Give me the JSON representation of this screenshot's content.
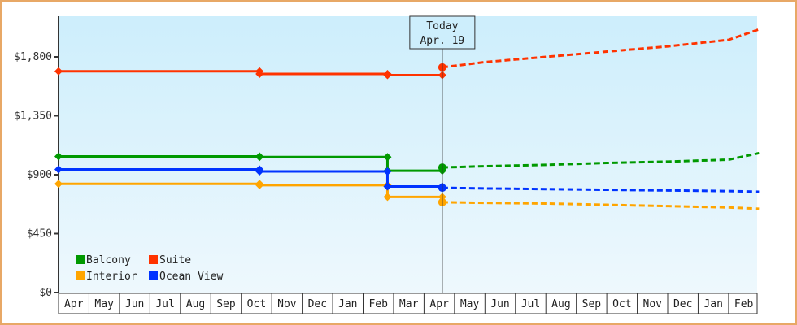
{
  "chart_data": {
    "type": "line",
    "title": "",
    "xlabel": "",
    "ylabel": "",
    "ylim": [
      0,
      2250
    ],
    "y_ticks": [
      "$0",
      "$450",
      "$900",
      "$1,350",
      "$1,800"
    ],
    "y_tick_values": [
      0,
      450,
      900,
      1350,
      1800
    ],
    "x": [
      "Apr",
      "May",
      "Jun",
      "Jul",
      "Aug",
      "Sep",
      "Oct",
      "Nov",
      "Dec",
      "Jan",
      "Feb",
      "Mar",
      "Apr",
      "May",
      "Jun",
      "Jul",
      "Aug",
      "Sep",
      "Oct",
      "Nov",
      "Dec",
      "Jan",
      "Feb"
    ],
    "today_marker": {
      "line1": "Today",
      "line2": "Apr. 19",
      "month_index": 12.6
    },
    "grid": false,
    "legend_position": "bottom-left inside",
    "series": [
      {
        "name": "Balcony",
        "color": "#009900",
        "historical": [
          [
            0,
            1040
          ],
          [
            6.6,
            1040
          ],
          [
            6.6,
            1035
          ],
          [
            10.8,
            1035
          ],
          [
            10.8,
            930
          ],
          [
            12.6,
            930
          ]
        ],
        "forecast": [
          [
            12.6,
            955
          ],
          [
            14,
            965
          ],
          [
            16,
            975
          ],
          [
            18,
            990
          ],
          [
            20,
            1000
          ],
          [
            22,
            1015
          ],
          [
            23,
            1065
          ]
        ]
      },
      {
        "name": "Suite",
        "color": "#ff3300",
        "historical": [
          [
            0,
            1690
          ],
          [
            6.6,
            1690
          ],
          [
            6.6,
            1670
          ],
          [
            10.8,
            1670
          ],
          [
            10.8,
            1660
          ],
          [
            12.6,
            1660
          ]
        ],
        "forecast": [
          [
            12.6,
            1720
          ],
          [
            14,
            1760
          ],
          [
            16,
            1800
          ],
          [
            18,
            1840
          ],
          [
            20,
            1880
          ],
          [
            22,
            1930
          ],
          [
            23,
            2010
          ]
        ]
      },
      {
        "name": "Interior",
        "color": "#ffa500",
        "historical": [
          [
            0,
            830
          ],
          [
            6.6,
            830
          ],
          [
            6.6,
            820
          ],
          [
            10.8,
            820
          ],
          [
            10.8,
            730
          ],
          [
            12.6,
            730
          ]
        ],
        "forecast": [
          [
            12.6,
            690
          ],
          [
            14,
            685
          ],
          [
            16,
            680
          ],
          [
            18,
            670
          ],
          [
            20,
            660
          ],
          [
            22,
            650
          ],
          [
            23,
            640
          ]
        ]
      },
      {
        "name": "Ocean View",
        "color": "#0033ff",
        "historical": [
          [
            0,
            940
          ],
          [
            6.6,
            940
          ],
          [
            6.6,
            925
          ],
          [
            10.8,
            925
          ],
          [
            10.8,
            810
          ],
          [
            12.6,
            810
          ]
        ],
        "forecast": [
          [
            12.6,
            800
          ],
          [
            14,
            795
          ],
          [
            16,
            790
          ],
          [
            18,
            785
          ],
          [
            20,
            780
          ],
          [
            22,
            775
          ],
          [
            23,
            770
          ]
        ]
      }
    ]
  },
  "legend": [
    {
      "label": "Balcony",
      "color": "#009900"
    },
    {
      "label": "Suite",
      "color": "#ff3300"
    },
    {
      "label": "Interior",
      "color": "#ffa500"
    },
    {
      "label": "Ocean View",
      "color": "#0033ff"
    }
  ],
  "today": {
    "line1": "Today",
    "line2": "Apr. 19"
  }
}
